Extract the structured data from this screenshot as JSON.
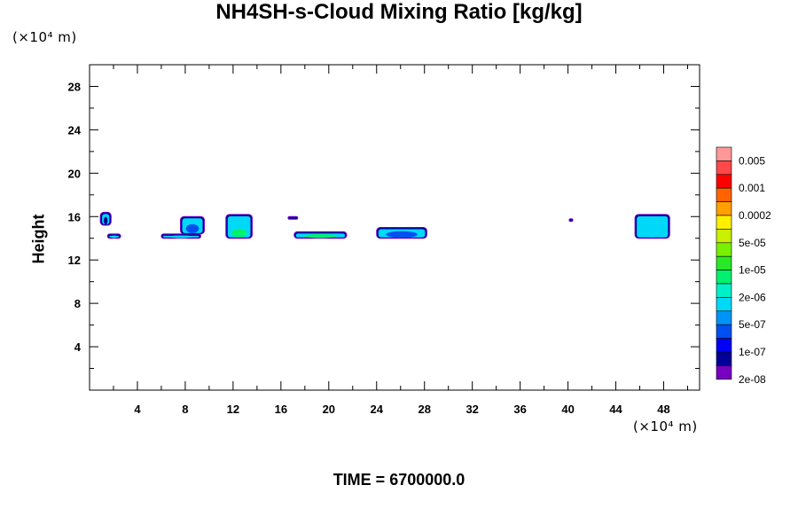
{
  "chart_data": {
    "type": "heatmap",
    "title": "NH4SH-s-Cloud Mixing Ratio [kg/kg]",
    "ylabel": "Height",
    "y_unit": "(×10⁴ m)",
    "x_unit": "(×10⁴ m)",
    "xlim": [
      0,
      51
    ],
    "ylim": [
      0,
      30
    ],
    "x_ticks": [
      4,
      8,
      12,
      16,
      20,
      24,
      28,
      32,
      36,
      40,
      44,
      48
    ],
    "y_ticks": [
      4,
      8,
      12,
      16,
      20,
      24,
      28
    ],
    "colorbar": {
      "colors": [
        "#ff9898",
        "#ff4848",
        "#ff0000",
        "#ff6400",
        "#ffa000",
        "#fff000",
        "#c8f000",
        "#78f000",
        "#28e828",
        "#00f070",
        "#00f0c8",
        "#00d8f8",
        "#0094f8",
        "#0050f0",
        "#0000f8",
        "#000098",
        "#7800c0"
      ],
      "labels": [
        "0.005",
        "0.001",
        "0.0002",
        "5e-05",
        "1e-05",
        "2e-06",
        "5e-07",
        "1e-07",
        "2e-08"
      ]
    },
    "cloud_patches": [
      {
        "x": [
          0.9,
          1.8
        ],
        "y": [
          15.2,
          16.4
        ],
        "level": "1e-07"
      },
      {
        "x": [
          1.5,
          2.6
        ],
        "y": [
          14.0,
          14.4
        ],
        "level": "2e-06"
      },
      {
        "x": [
          6.0,
          9.3
        ],
        "y": [
          14.0,
          14.4
        ],
        "level": "2e-06"
      },
      {
        "x": [
          7.6,
          9.6
        ],
        "y": [
          14.4,
          16.0
        ],
        "level": "5e-07"
      },
      {
        "x": [
          11.4,
          13.6
        ],
        "y": [
          14.0,
          16.2
        ],
        "level": "1e-05"
      },
      {
        "x": [
          16.6,
          17.4
        ],
        "y": [
          15.8,
          16.0
        ],
        "level": "2e-08"
      },
      {
        "x": [
          17.1,
          21.5
        ],
        "y": [
          14.0,
          14.6
        ],
        "level": "1e-05"
      },
      {
        "x": [
          24.0,
          28.2
        ],
        "y": [
          14.0,
          15.0
        ],
        "level": "5e-07"
      },
      {
        "x": [
          40.1,
          40.4
        ],
        "y": [
          15.6,
          15.8
        ],
        "level": "1e-07"
      },
      {
        "x": [
          45.6,
          48.5
        ],
        "y": [
          14.0,
          16.2
        ],
        "level": "5e-06"
      }
    ]
  },
  "footer": {
    "time_label": "TIME = 6700000.0"
  }
}
